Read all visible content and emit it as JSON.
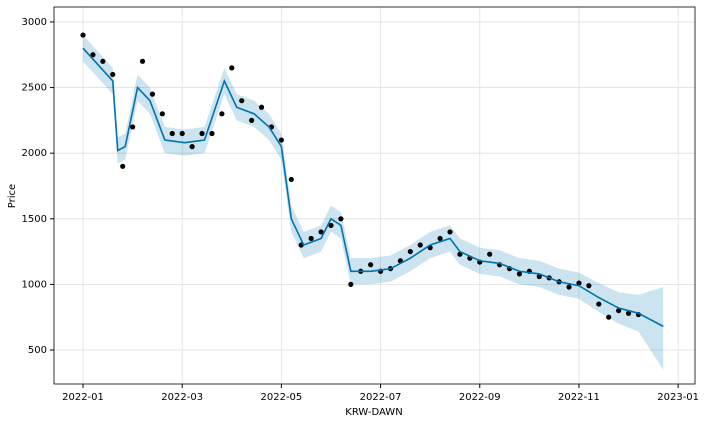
{
  "chart_data": {
    "type": "forecast",
    "xlabel": "KRW-DAWN",
    "ylabel": "Price",
    "xlim": [
      -0.585,
      12.34
    ],
    "ylim": [
      241,
      3114
    ],
    "xticks": [
      {
        "value": 0,
        "label": "2022-01"
      },
      {
        "value": 2,
        "label": "2022-03"
      },
      {
        "value": 4,
        "label": "2022-05"
      },
      {
        "value": 6,
        "label": "2022-07"
      },
      {
        "value": 8,
        "label": "2022-09"
      },
      {
        "value": 10,
        "label": "2022-11"
      },
      {
        "value": 12,
        "label": "2023-01"
      }
    ],
    "yticks": [
      500,
      1000,
      1500,
      2000,
      2500,
      3000
    ],
    "grid": true,
    "observed": {
      "color": "#000000",
      "x": [
        0.0,
        0.2,
        0.4,
        0.6,
        0.8,
        1.0,
        1.2,
        1.4,
        1.6,
        1.8,
        2.0,
        2.2,
        2.4,
        2.6,
        2.8,
        3.0,
        3.2,
        3.4,
        3.6,
        3.8,
        4.0,
        4.2,
        4.4,
        4.6,
        4.8,
        5.0,
        5.2,
        5.4,
        5.6,
        5.8,
        6.0,
        6.2,
        6.4,
        6.6,
        6.8,
        7.0,
        7.2,
        7.4,
        7.6,
        7.8,
        8.0,
        8.2,
        8.4,
        8.6,
        8.8,
        9.0,
        9.2,
        9.4,
        9.6,
        9.8,
        10.0,
        10.2,
        10.4,
        10.6,
        10.8,
        11.0,
        11.2
      ],
      "values": [
        2900,
        2750,
        2700,
        2600,
        1900,
        2200,
        2700,
        2450,
        2300,
        2150,
        2150,
        2050,
        2150,
        2150,
        2300,
        2650,
        2400,
        2250,
        2350,
        2200,
        2100,
        1800,
        1300,
        1350,
        1400,
        1450,
        1500,
        1000,
        1100,
        1150,
        1100,
        1120,
        1180,
        1250,
        1300,
        1280,
        1350,
        1400,
        1230,
        1200,
        1170,
        1230,
        1150,
        1120,
        1080,
        1100,
        1060,
        1050,
        1020,
        980,
        1010,
        990,
        850,
        750,
        800,
        780,
        770
      ]
    },
    "forecast": {
      "color": "#0072B2",
      "x": [
        0,
        0.6,
        0.7,
        0.85,
        1.1,
        1.35,
        1.65,
        2.05,
        2.45,
        2.85,
        3.1,
        3.45,
        3.75,
        4.0,
        4.2,
        4.45,
        4.8,
        5.0,
        5.2,
        5.4,
        5.8,
        6.2,
        6.6,
        7.0,
        7.4,
        7.6,
        8.0,
        8.4,
        8.8,
        9.2,
        9.6,
        10.0,
        10.4,
        10.8,
        11.2,
        11.7
      ],
      "values": [
        2800,
        2550,
        2020,
        2050,
        2500,
        2400,
        2100,
        2080,
        2100,
        2550,
        2350,
        2300,
        2200,
        2050,
        1500,
        1300,
        1350,
        1500,
        1450,
        1100,
        1100,
        1120,
        1200,
        1300,
        1350,
        1250,
        1180,
        1160,
        1100,
        1080,
        1020,
        990,
        900,
        820,
        780,
        680
      ],
      "lower": [
        2700,
        2450,
        1920,
        1950,
        2400,
        2300,
        2000,
        1980,
        2000,
        2450,
        2250,
        2200,
        2100,
        1950,
        1400,
        1200,
        1250,
        1400,
        1350,
        1000,
        1000,
        1020,
        1100,
        1200,
        1250,
        1150,
        1080,
        1060,
        1000,
        980,
        920,
        890,
        790,
        700,
        640,
        350
      ],
      "upper": [
        2900,
        2650,
        2120,
        2150,
        2600,
        2500,
        2200,
        2180,
        2200,
        2650,
        2450,
        2400,
        2300,
        2150,
        1600,
        1400,
        1450,
        1600,
        1550,
        1200,
        1200,
        1220,
        1300,
        1400,
        1450,
        1350,
        1280,
        1260,
        1200,
        1180,
        1120,
        1090,
        1010,
        940,
        920,
        980
      ]
    }
  }
}
